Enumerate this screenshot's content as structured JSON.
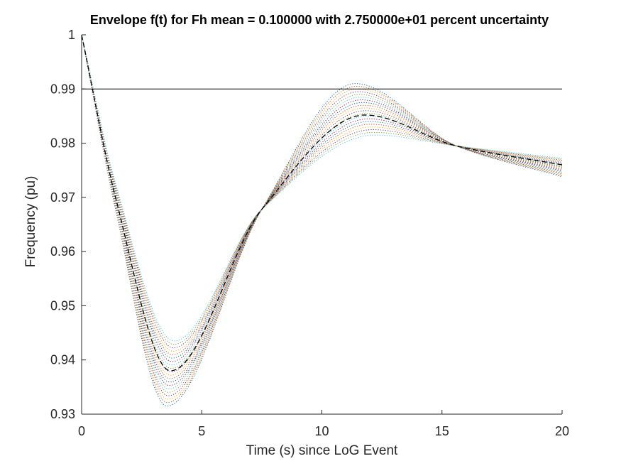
{
  "chart_data": {
    "type": "line",
    "title": "Envelope f(t) for Fh mean = 0.100000 with 2.750000e+01 percent uncertainty",
    "xlabel": "Time (s) since LoG Event",
    "ylabel": "Frequency (pu)",
    "xlim": [
      0,
      20
    ],
    "ylim": [
      0.93,
      1.0
    ],
    "xticks": [
      0,
      5,
      10,
      15,
      20
    ],
    "xtick_labels": [
      "0",
      "5",
      "10",
      "15",
      "20"
    ],
    "yticks": [
      0.93,
      0.94,
      0.95,
      0.96,
      0.97,
      0.98,
      0.99,
      1.0
    ],
    "ytick_labels": [
      "0.93",
      "0.94",
      "0.95",
      "0.96",
      "0.97",
      "0.98",
      "0.99",
      "1"
    ],
    "grid": false,
    "legend": "none",
    "reference_line": {
      "y": 0.99,
      "style": "solid",
      "color": "#000000"
    },
    "mean_curve": {
      "style": "dashed",
      "color": "#000000",
      "t_nadir": 3.7,
      "f_nadir": 0.938,
      "t_peak": 11.8,
      "f_peak": 0.9852,
      "f_end": 0.976
    },
    "ensemble": {
      "style": "dotted",
      "count": 20,
      "f_start": 1.0,
      "nadir_range": [
        0.9315,
        0.9435
      ],
      "peak_range": [
        0.9815,
        0.991
      ],
      "end_range": [
        0.9738,
        0.9772
      ],
      "crossing_points": [
        [
          7.5,
          0.9678
        ],
        [
          15.6,
          0.9795
        ]
      ],
      "colors": [
        "#0072BD",
        "#D95319",
        "#EDB120",
        "#7E2F8E",
        "#77AC30",
        "#4DBEEE",
        "#A2142F"
      ]
    }
  }
}
